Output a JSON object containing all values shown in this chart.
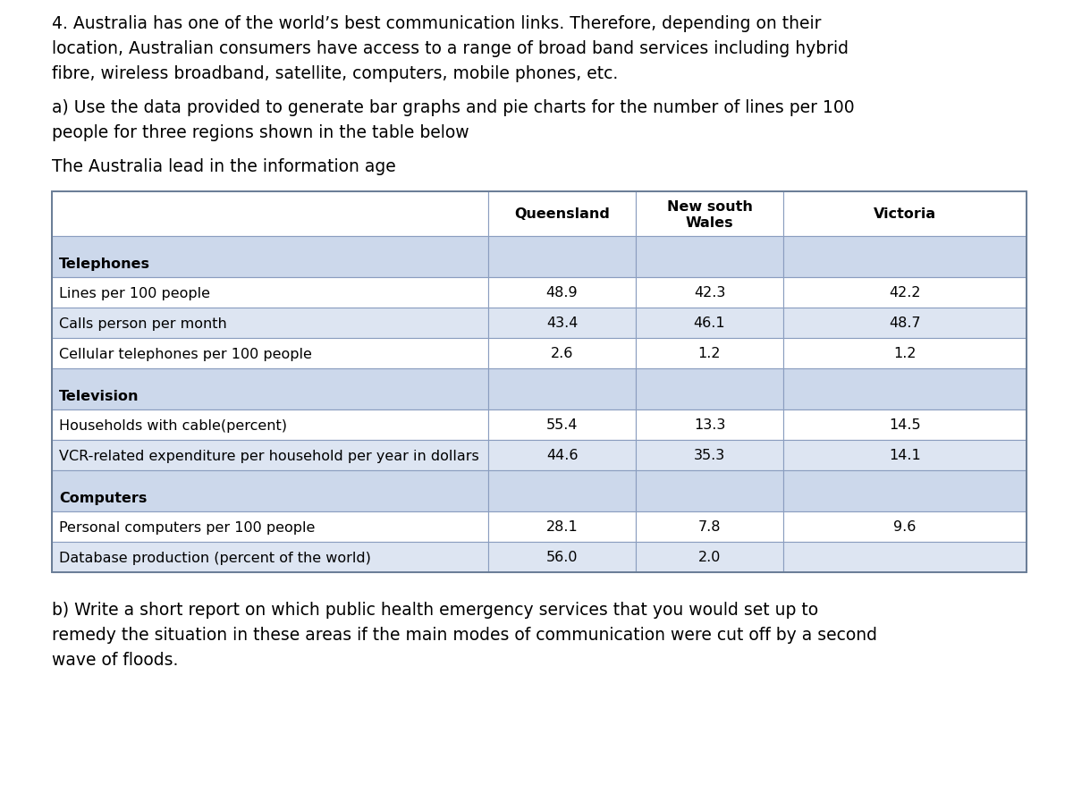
{
  "lines": [
    "4. Australia has one of the world’s best communication links. Therefore, depending on their",
    "location, Australian consumers have access to a range of broad band services including hybrid",
    "fibre, wireless broadband, satellite, computers, mobile phones, etc.",
    "",
    "a) Use the data provided to generate bar graphs and pie charts for the number of lines per 100",
    "people for three regions shown in the table below",
    "",
    "The Australia lead in the information age"
  ],
  "para3_lines": [
    "b) Write a short report on which public health emergency services that you would set up to",
    "remedy the situation in these areas if the main modes of communication were cut off by a second",
    "wave of floods."
  ],
  "col_headers": [
    "",
    "Queensland",
    "New south\nWales",
    "Victoria"
  ],
  "bg_color": "#ffffff",
  "text_color": "#000000",
  "header_bg": "#c8d4e8",
  "section_bg": "#ccd8eb",
  "row_shaded_bg": "#dde5f2",
  "row_normal_bg": "#ffffff",
  "table_border_color": "#7a8fa8",
  "font_size_body": 13.5,
  "font_size_table": 11.5,
  "table_rows": [
    {
      "type": "section",
      "label": "Telephones",
      "values": [],
      "shaded": true
    },
    {
      "type": "data",
      "label": "Lines per 100 people",
      "values": [
        "48.9",
        "42.3",
        "42.2"
      ],
      "shaded": false
    },
    {
      "type": "data",
      "label": "Calls person per month",
      "values": [
        "43.4",
        "46.1",
        "48.7"
      ],
      "shaded": true
    },
    {
      "type": "data",
      "label": "Cellular telephones per 100 people",
      "values": [
        "2.6",
        "1.2",
        "1.2"
      ],
      "shaded": false
    },
    {
      "type": "section",
      "label": "Television",
      "values": [],
      "shaded": true
    },
    {
      "type": "data",
      "label": "Households with cable(percent)",
      "values": [
        "55.4",
        "13.3",
        "14.5"
      ],
      "shaded": false
    },
    {
      "type": "data",
      "label": "VCR-related expenditure per household per year in dollars",
      "values": [
        "44.6",
        "35.3",
        "14.1"
      ],
      "shaded": true
    },
    {
      "type": "section",
      "label": "Computers",
      "values": [],
      "shaded": true
    },
    {
      "type": "data",
      "label": "Personal computers per 100 people",
      "values": [
        "28.1",
        "7.8",
        "9.6"
      ],
      "shaded": false
    },
    {
      "type": "data",
      "label": "Database production (percent of the world)",
      "values": [
        "56.0",
        "2.0",
        ""
      ],
      "shaded": true
    }
  ]
}
